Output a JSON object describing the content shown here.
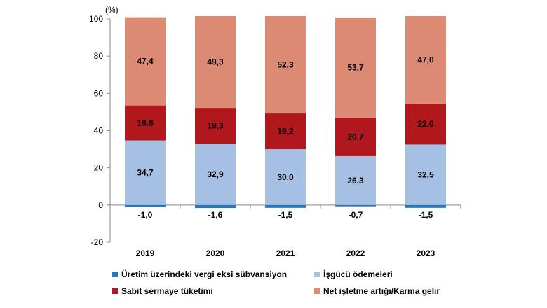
{
  "chart_data": {
    "type": "bar",
    "stacked": true,
    "unit_label": "(%)",
    "categories": [
      "2019",
      "2020",
      "2021",
      "2022",
      "2023"
    ],
    "ylim": [
      -20,
      100
    ],
    "yticks": [
      -20,
      0,
      20,
      40,
      60,
      80,
      100
    ],
    "grid": false,
    "legend_position": "bottom",
    "series": [
      {
        "name": "Üretim üzerindeki vergi eksi sübvansiyon",
        "color": "#2e75b6",
        "values": [
          -1.0,
          -1.6,
          -1.5,
          -0.7,
          -1.5
        ],
        "labels": [
          "-1,0",
          "-1,6",
          "-1,5",
          "-0,7",
          "-1,5"
        ]
      },
      {
        "name": "İşgücü ödemeleri",
        "color": "#a6c0e4",
        "values": [
          34.7,
          32.9,
          30.0,
          26.3,
          32.5
        ],
        "labels": [
          "34,7",
          "32,9",
          "30,0",
          "26,3",
          "32,5"
        ]
      },
      {
        "name": "Sabit sermaye tüketimi",
        "color": "#b0181e",
        "values": [
          18.8,
          19.3,
          19.2,
          20.7,
          22.0
        ],
        "labels": [
          "18,8",
          "19,3",
          "19,2",
          "20,7",
          "22,0"
        ]
      },
      {
        "name": "Net işletme artığı/Karma gelir",
        "color": "#dd8a74",
        "values": [
          47.4,
          49.3,
          52.3,
          53.7,
          47.0
        ],
        "labels": [
          "47,4",
          "49,3",
          "52,3",
          "53,7",
          "47,0"
        ]
      }
    ]
  }
}
